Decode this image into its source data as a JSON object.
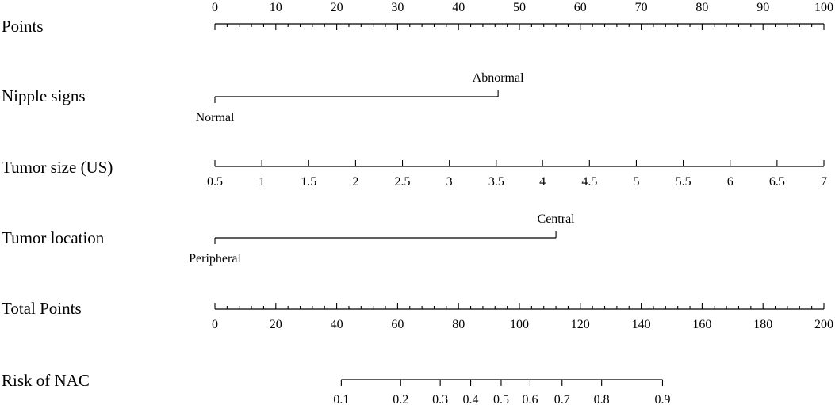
{
  "chart_data": {
    "type": "nomogram",
    "rows": [
      {
        "name": "Points",
        "kind": "scale",
        "ticks": [
          {
            "label": "0",
            "points": 0
          },
          {
            "label": "10",
            "points": 10
          },
          {
            "label": "20",
            "points": 20
          },
          {
            "label": "30",
            "points": 30
          },
          {
            "label": "40",
            "points": 40
          },
          {
            "label": "50",
            "points": 50
          },
          {
            "label": "60",
            "points": 60
          },
          {
            "label": "70",
            "points": 70
          },
          {
            "label": "80",
            "points": 80
          },
          {
            "label": "90",
            "points": 90
          },
          {
            "label": "100",
            "points": 100
          }
        ],
        "minor_step": 2,
        "labels_position": "above"
      },
      {
        "name": "Nipple signs",
        "kind": "categorical",
        "levels": [
          {
            "label": "Normal",
            "points": 0,
            "label_position": "below"
          },
          {
            "label": "Abnormal",
            "points": 46.5,
            "label_position": "above"
          }
        ]
      },
      {
        "name": "Tumor size (US)",
        "kind": "scale",
        "ticks": [
          {
            "label": "0.5",
            "points": 0
          },
          {
            "label": "1",
            "points": 7.7
          },
          {
            "label": "1.5",
            "points": 15.4
          },
          {
            "label": "2",
            "points": 23.1
          },
          {
            "label": "2.5",
            "points": 30.8
          },
          {
            "label": "3",
            "points": 38.5
          },
          {
            "label": "3.5",
            "points": 46.2
          },
          {
            "label": "4",
            "points": 53.8
          },
          {
            "label": "4.5",
            "points": 61.5
          },
          {
            "label": "5",
            "points": 69.2
          },
          {
            "label": "5.5",
            "points": 76.9
          },
          {
            "label": "6",
            "points": 84.6
          },
          {
            "label": "6.5",
            "points": 92.3
          },
          {
            "label": "7",
            "points": 100
          }
        ],
        "labels_position": "below"
      },
      {
        "name": "Tumor location",
        "kind": "categorical",
        "levels": [
          {
            "label": "Peripheral",
            "points": 0,
            "label_position": "below"
          },
          {
            "label": "Central",
            "points": 56,
            "label_position": "above"
          }
        ]
      },
      {
        "name": "Total Points",
        "kind": "total",
        "total_range": [
          0,
          200
        ],
        "ticks": [
          {
            "label": "0",
            "value": 0
          },
          {
            "label": "20",
            "value": 20
          },
          {
            "label": "40",
            "value": 40
          },
          {
            "label": "60",
            "value": 60
          },
          {
            "label": "80",
            "value": 80
          },
          {
            "label": "100",
            "value": 100
          },
          {
            "label": "120",
            "value": 120
          },
          {
            "label": "140",
            "value": 140
          },
          {
            "label": "160",
            "value": 160
          },
          {
            "label": "180",
            "value": 180
          },
          {
            "label": "200",
            "value": 200
          }
        ],
        "minor_step": 4,
        "labels_position": "below"
      },
      {
        "name": "Risk of NAC",
        "kind": "risk",
        "ticks": [
          {
            "label": "0.1",
            "total": 41.5
          },
          {
            "label": "0.2",
            "total": 61
          },
          {
            "label": "0.3",
            "total": 74
          },
          {
            "label": "0.4",
            "total": 84
          },
          {
            "label": "0.5",
            "total": 94
          },
          {
            "label": "0.6",
            "total": 103.5
          },
          {
            "label": "0.7",
            "total": 114
          },
          {
            "label": "0.8",
            "total": 127
          },
          {
            "label": "0.9",
            "total": 147
          }
        ],
        "labels_position": "below"
      }
    ]
  }
}
